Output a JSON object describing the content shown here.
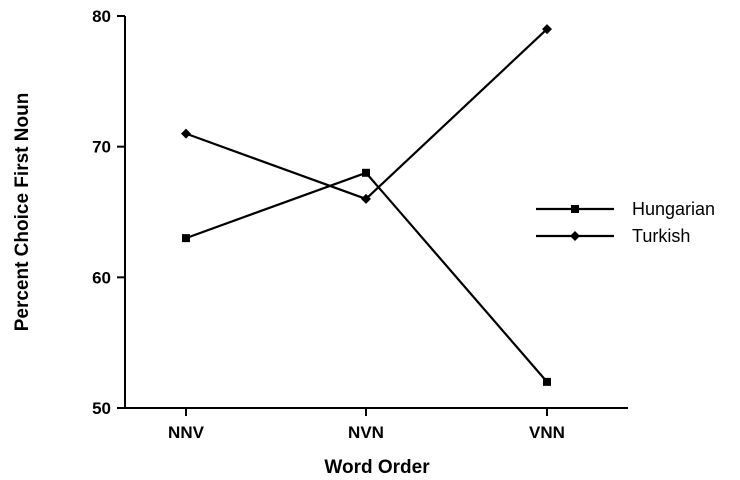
{
  "chart_data": {
    "type": "line",
    "categories": [
      "NNV",
      "NVN",
      "VNN"
    ],
    "series": [
      {
        "name": "Hungarian",
        "marker": "square",
        "values": [
          63,
          68,
          52
        ]
      },
      {
        "name": "Turkish",
        "marker": "diamond",
        "values": [
          71,
          66,
          79
        ]
      }
    ],
    "xlabel": "Word Order",
    "ylabel": "Percent Choice First Noun",
    "ylim": [
      50,
      80
    ],
    "yticks": [
      50,
      60,
      70,
      80
    ],
    "grid": false,
    "legend_position": "right",
    "line_color": "#000000"
  }
}
